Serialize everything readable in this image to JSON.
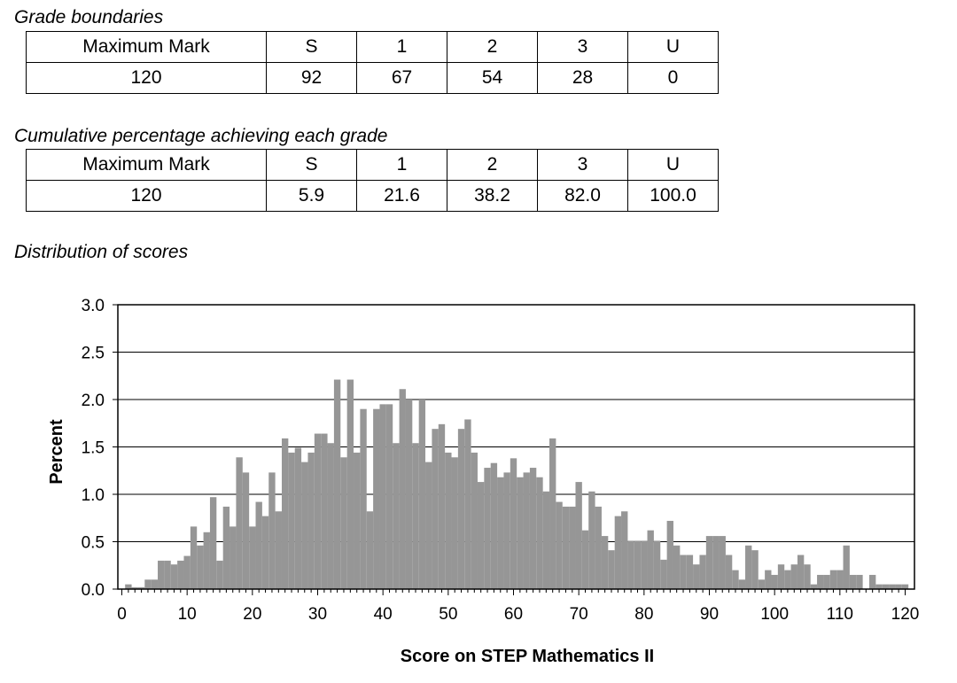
{
  "boundaries": {
    "caption": "Grade boundaries",
    "headers": [
      "Maximum Mark",
      "S",
      "1",
      "2",
      "3",
      "U"
    ],
    "values": [
      "120",
      "92",
      "67",
      "54",
      "28",
      "0"
    ]
  },
  "cumulative": {
    "caption": "Cumulative percentage achieving each grade",
    "headers": [
      "Maximum Mark",
      "S",
      "1",
      "2",
      "3",
      "U"
    ],
    "values": [
      "120",
      "5.9",
      "21.6",
      "38.2",
      "82.0",
      "100.0"
    ]
  },
  "distribution_caption": "Distribution of scores",
  "chart_data": {
    "type": "bar",
    "title": "Distribution of scores",
    "xlabel": "Score on STEP Mathematics II",
    "ylabel": "Percent",
    "xlim": [
      0,
      120
    ],
    "ylim": [
      0,
      3.0
    ],
    "xticks": [
      0,
      10,
      20,
      30,
      40,
      50,
      60,
      70,
      80,
      90,
      100,
      110,
      120
    ],
    "yticks": [
      0.0,
      0.5,
      1.0,
      1.5,
      2.0,
      2.5,
      3.0
    ],
    "ytick_labels": [
      "0.0",
      "0.5",
      "1.0",
      "1.5",
      "2.0",
      "2.5",
      "3.0"
    ],
    "grid": "horizontal",
    "bar_color": "#969696",
    "x": [
      0,
      1,
      2,
      3,
      4,
      5,
      6,
      7,
      8,
      9,
      10,
      11,
      12,
      13,
      14,
      15,
      16,
      17,
      18,
      19,
      20,
      21,
      22,
      23,
      24,
      25,
      26,
      27,
      28,
      29,
      30,
      31,
      32,
      33,
      34,
      35,
      36,
      37,
      38,
      39,
      40,
      41,
      42,
      43,
      44,
      45,
      46,
      47,
      48,
      49,
      50,
      51,
      52,
      53,
      54,
      55,
      56,
      57,
      58,
      59,
      60,
      61,
      62,
      63,
      64,
      65,
      66,
      67,
      68,
      69,
      70,
      71,
      72,
      73,
      74,
      75,
      76,
      77,
      78,
      79,
      80,
      81,
      82,
      83,
      84,
      85,
      86,
      87,
      88,
      89,
      90,
      91,
      92,
      93,
      94,
      95,
      96,
      97,
      98,
      99,
      100,
      101,
      102,
      103,
      104,
      105,
      106,
      107,
      108,
      109,
      110,
      111,
      112,
      113,
      114,
      115,
      116,
      117,
      118,
      119,
      120
    ],
    "values": [
      0.0,
      0.05,
      0.02,
      0.02,
      0.1,
      0.1,
      0.3,
      0.3,
      0.26,
      0.3,
      0.35,
      0.66,
      0.46,
      0.6,
      0.97,
      0.3,
      0.87,
      0.66,
      1.39,
      1.23,
      0.66,
      0.92,
      0.77,
      1.23,
      0.82,
      1.59,
      1.44,
      1.49,
      1.34,
      1.44,
      1.64,
      1.64,
      1.54,
      2.21,
      1.39,
      2.21,
      1.44,
      1.9,
      0.82,
      1.9,
      1.95,
      1.95,
      1.54,
      2.11,
      2.0,
      1.54,
      2.0,
      1.34,
      1.69,
      1.74,
      1.44,
      1.39,
      1.69,
      1.79,
      1.44,
      1.13,
      1.28,
      1.33,
      1.18,
      1.23,
      1.38,
      1.18,
      1.23,
      1.28,
      1.18,
      1.03,
      1.59,
      0.92,
      0.87,
      0.87,
      1.13,
      0.62,
      1.03,
      0.87,
      0.56,
      0.41,
      0.77,
      0.82,
      0.51,
      0.51,
      0.51,
      0.62,
      0.51,
      0.31,
      0.72,
      0.46,
      0.36,
      0.36,
      0.26,
      0.36,
      0.56,
      0.56,
      0.56,
      0.36,
      0.2,
      0.1,
      0.46,
      0.41,
      0.1,
      0.2,
      0.15,
      0.26,
      0.2,
      0.26,
      0.36,
      0.26,
      0.05,
      0.15,
      0.15,
      0.2,
      0.2,
      0.46,
      0.15,
      0.15,
      0.0,
      0.15,
      0.05,
      0.05,
      0.05,
      0.05,
      0.05
    ]
  }
}
